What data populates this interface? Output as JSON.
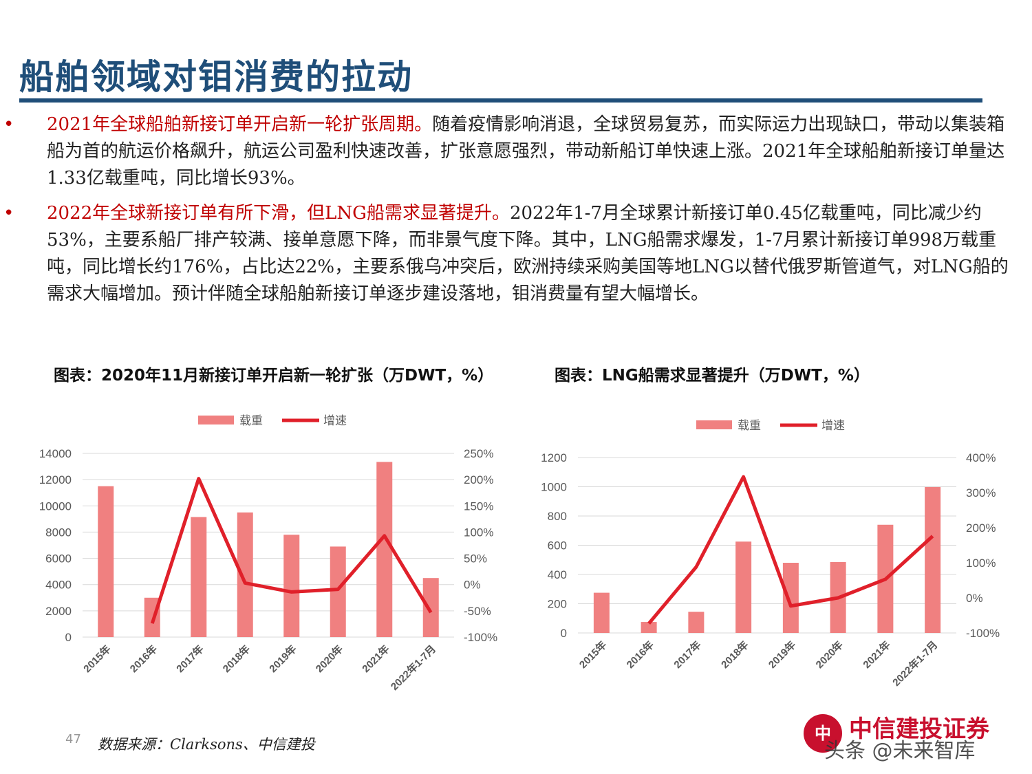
{
  "page": {
    "title": "船舶领域对钼消费的拉动",
    "bullets": [
      {
        "highlight": "2021年全球船舶新接订单开启新一轮扩张周期。",
        "text": "随着疫情影响消退，全球贸易复苏，而实际运力出现缺口，带动以集装箱船为首的航运价格飙升，航运公司盈利快速改善，扩张意愿强烈，带动新船订单快速上涨。2021年全球船舶新接订单量达1.33亿载重吨，同比增长93%。"
      },
      {
        "highlight": "2022年全球新接订单有所下滑，但LNG船需求显著提升。",
        "text": "2022年1-7月全球累计新接订单0.45亿载重吨，同比减少约53%，主要系船厂排产较满、接单意愿下降，而非景气度下降。其中，LNG船需求爆发，1-7月累计新接订单998万载重吨，同比增长约176%，占比达22%，主要系俄乌冲突后，欧洲持续采购美国等地LNG以替代俄罗斯管道气，对LNG船的需求大幅增加。预计伴随全球船舶新接订单逐步建设落地，钼消费量有望大幅增长。"
      }
    ],
    "page_number": "47",
    "source": "数据来源：Clarksons、中信建投",
    "logo_text": "中信建投证券",
    "logo_mark": "中",
    "watermark": "头条 @未来智库"
  },
  "colors": {
    "title": "#1f4e79",
    "highlight": "#c00000",
    "bar": "#f08080",
    "line": "#e0202a"
  },
  "chart_data": [
    {
      "type": "bar",
      "title": "图表：2020年11月新接订单开启新一轮扩张（万DWT，%）",
      "categories": [
        "2015年",
        "2016年",
        "2017年",
        "2018年",
        "2019年",
        "2020年",
        "2021年",
        "2022年1-7月"
      ],
      "series": [
        {
          "name": "载重",
          "kind": "bar",
          "axis": "left",
          "values": [
            11500,
            3000,
            9150,
            9500,
            7800,
            6900,
            13350,
            4500
          ]
        },
        {
          "name": "增速",
          "kind": "line",
          "axis": "right",
          "values": [
            null,
            -74,
            202,
            3,
            -14,
            -9,
            93,
            -53
          ]
        }
      ],
      "y_left": {
        "min": 0,
        "max": 14000,
        "ticks": [
          "0",
          "2000",
          "4000",
          "6000",
          "8000",
          "10000",
          "12000",
          "14000"
        ]
      },
      "y_right": {
        "min": -100,
        "max": 250,
        "ticks": [
          "-100%",
          "-50%",
          "0%",
          "50%",
          "100%",
          "150%",
          "200%",
          "250%"
        ]
      },
      "legend": "top",
      "grid": true
    },
    {
      "type": "bar",
      "title": "图表：LNG船需求显著提升（万DWT，%）",
      "categories": [
        "2015年",
        "2016年",
        "2017年",
        "2018年",
        "2019年",
        "2020年",
        "2021年",
        "2022年1-7月"
      ],
      "series": [
        {
          "name": "载重",
          "kind": "bar",
          "axis": "left",
          "values": [
            275,
            75,
            145,
            625,
            480,
            485,
            740,
            998
          ]
        },
        {
          "name": "增速",
          "kind": "line",
          "axis": "right",
          "values": [
            null,
            -73,
            88,
            345,
            -23,
            0,
            53,
            176
          ]
        }
      ],
      "y_left": {
        "min": 0,
        "max": 1200,
        "ticks": [
          "0",
          "200",
          "400",
          "600",
          "800",
          "1000",
          "1200"
        ]
      },
      "y_right": {
        "min": -100,
        "max": 400,
        "ticks": [
          "-100%",
          "0%",
          "100%",
          "200%",
          "300%",
          "400%"
        ]
      },
      "legend": "top",
      "grid": true
    }
  ]
}
